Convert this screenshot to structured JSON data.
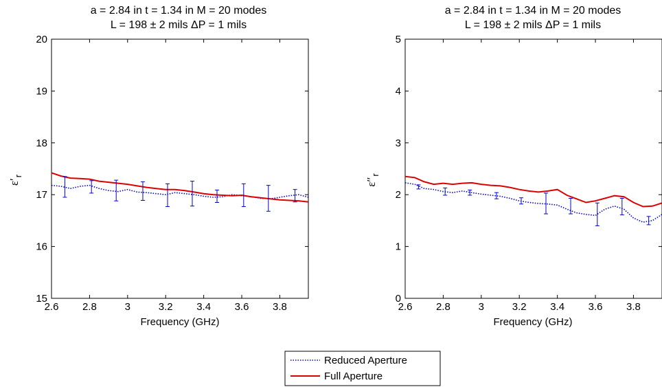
{
  "chart_data": [
    {
      "type": "line",
      "title": [
        "a = 2.84 in   t = 1.34 in   M = 20 modes",
        "L = 198 ± 2 mils   ΔP = 1 mils"
      ],
      "xlabel": "Frequency (GHz)",
      "ylabel": "ε′",
      "ylabel_sub": "r",
      "xlim": [
        2.6,
        3.95
      ],
      "ylim": [
        15,
        20
      ],
      "xticks": [
        2.6,
        2.8,
        3,
        3.2,
        3.4,
        3.6,
        3.8
      ],
      "xtick_labels": [
        "2.6",
        "2.8",
        "3",
        "3.2",
        "3.4",
        "3.6",
        "3.8"
      ],
      "yticks": [
        15,
        16,
        17,
        18,
        19,
        20
      ],
      "ytick_labels": [
        "15",
        "16",
        "17",
        "18",
        "19",
        "20"
      ],
      "grid": false,
      "series": [
        {
          "name": "Reduced Aperture",
          "color": "#0000cc",
          "style": "dotted",
          "x": [
            2.6,
            2.65,
            2.7,
            2.75,
            2.8,
            2.85,
            2.9,
            2.95,
            3.0,
            3.05,
            3.1,
            3.15,
            3.2,
            3.25,
            3.3,
            3.35,
            3.4,
            3.45,
            3.5,
            3.55,
            3.6,
            3.65,
            3.7,
            3.75,
            3.8,
            3.85,
            3.9,
            3.95
          ],
          "y": [
            17.18,
            17.16,
            17.12,
            17.16,
            17.18,
            17.12,
            17.08,
            17.06,
            17.1,
            17.05,
            17.04,
            17.02,
            17.0,
            17.04,
            17.02,
            17.0,
            16.97,
            16.95,
            16.96,
            17.0,
            16.98,
            16.96,
            16.93,
            16.92,
            16.95,
            16.98,
            17.0,
            16.95
          ]
        },
        {
          "name": "Full Aperture",
          "color": "#dd0000",
          "style": "solid",
          "x": [
            2.6,
            2.65,
            2.7,
            2.75,
            2.8,
            2.85,
            2.9,
            2.95,
            3.0,
            3.05,
            3.1,
            3.15,
            3.2,
            3.25,
            3.3,
            3.35,
            3.4,
            3.45,
            3.5,
            3.55,
            3.6,
            3.65,
            3.7,
            3.75,
            3.8,
            3.85,
            3.9,
            3.95
          ],
          "y": [
            17.42,
            17.36,
            17.32,
            17.31,
            17.3,
            17.26,
            17.24,
            17.22,
            17.2,
            17.17,
            17.14,
            17.12,
            17.1,
            17.1,
            17.08,
            17.05,
            17.02,
            17.0,
            16.99,
            16.98,
            16.99,
            16.96,
            16.94,
            16.92,
            16.9,
            16.89,
            16.88,
            16.86
          ]
        }
      ],
      "error_bars": {
        "series": "Reduced Aperture",
        "x": [
          2.67,
          2.81,
          2.94,
          3.08,
          3.21,
          3.34,
          3.47,
          3.61,
          3.74,
          3.88
        ],
        "y": [
          17.15,
          17.15,
          17.08,
          17.07,
          16.99,
          17.02,
          16.97,
          16.99,
          16.93,
          16.98
        ],
        "err": [
          0.2,
          0.12,
          0.2,
          0.18,
          0.22,
          0.24,
          0.12,
          0.22,
          0.25,
          0.12
        ]
      }
    },
    {
      "type": "line",
      "title": [
        "a = 2.84 in   t = 1.34 in   M = 20 modes",
        "L = 198 ± 2 mils   ΔP = 1 mils"
      ],
      "xlabel": "Frequency (GHz)",
      "ylabel": "ε″",
      "ylabel_sub": "r",
      "xlim": [
        2.6,
        3.95
      ],
      "ylim": [
        0,
        5
      ],
      "xticks": [
        2.6,
        2.8,
        3,
        3.2,
        3.4,
        3.6,
        3.8
      ],
      "xtick_labels": [
        "2.6",
        "2.8",
        "3",
        "3.2",
        "3.4",
        "3.6",
        "3.8"
      ],
      "yticks": [
        0,
        1,
        2,
        3,
        4,
        5
      ],
      "ytick_labels": [
        "0",
        "1",
        "2",
        "3",
        "4",
        "5"
      ],
      "grid": false,
      "series": [
        {
          "name": "Reduced Aperture",
          "color": "#0000cc",
          "style": "dotted",
          "x": [
            2.6,
            2.65,
            2.7,
            2.75,
            2.8,
            2.85,
            2.9,
            2.95,
            3.0,
            3.05,
            3.1,
            3.15,
            3.2,
            3.25,
            3.3,
            3.35,
            3.4,
            3.45,
            3.5,
            3.55,
            3.6,
            3.65,
            3.7,
            3.75,
            3.8,
            3.85,
            3.9,
            3.95
          ],
          "y": [
            2.23,
            2.2,
            2.12,
            2.1,
            2.06,
            2.04,
            2.07,
            2.04,
            2.01,
            1.99,
            1.97,
            1.93,
            1.88,
            1.85,
            1.83,
            1.82,
            1.8,
            1.72,
            1.65,
            1.62,
            1.6,
            1.72,
            1.78,
            1.72,
            1.55,
            1.47,
            1.5,
            1.62
          ]
        },
        {
          "name": "Full Aperture",
          "color": "#dd0000",
          "style": "solid",
          "x": [
            2.6,
            2.65,
            2.7,
            2.75,
            2.8,
            2.85,
            2.9,
            2.95,
            3.0,
            3.05,
            3.1,
            3.15,
            3.2,
            3.25,
            3.3,
            3.35,
            3.4,
            3.45,
            3.5,
            3.55,
            3.6,
            3.65,
            3.7,
            3.75,
            3.8,
            3.85,
            3.9,
            3.95
          ],
          "y": [
            2.35,
            2.33,
            2.25,
            2.2,
            2.22,
            2.2,
            2.22,
            2.23,
            2.2,
            2.18,
            2.17,
            2.14,
            2.1,
            2.07,
            2.05,
            2.07,
            2.1,
            1.99,
            1.92,
            1.85,
            1.88,
            1.93,
            1.98,
            1.96,
            1.85,
            1.77,
            1.78,
            1.84
          ]
        }
      ],
      "error_bars": {
        "series": "Reduced Aperture",
        "x": [
          2.67,
          2.81,
          2.94,
          3.08,
          3.21,
          3.34,
          3.47,
          3.61,
          3.74,
          3.88
        ],
        "y": [
          2.15,
          2.06,
          2.04,
          1.98,
          1.88,
          1.83,
          1.78,
          1.62,
          1.77,
          1.5
        ],
        "err": [
          0.04,
          0.07,
          0.05,
          0.06,
          0.06,
          0.2,
          0.15,
          0.22,
          0.16,
          0.08
        ]
      }
    }
  ],
  "legend": {
    "position": "bottom-center",
    "items": [
      "Reduced Aperture",
      "Full Aperture"
    ]
  }
}
